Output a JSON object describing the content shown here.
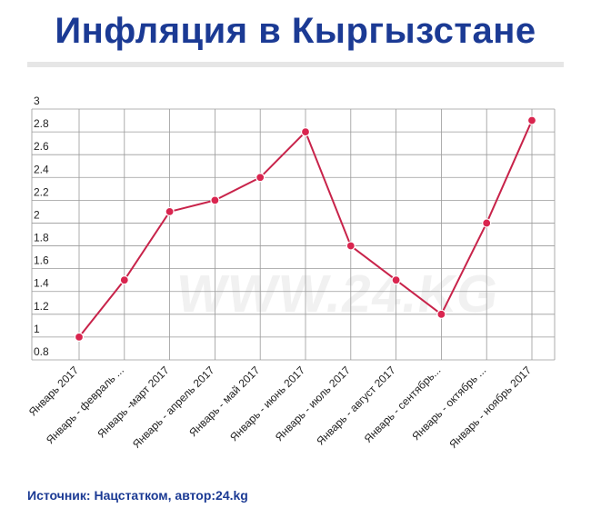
{
  "page": {
    "title": "Инфляция в Кыргызстане",
    "source": "Источник: Нацстатком, автор:24.kg",
    "watermark": "WWW.24.KG"
  },
  "colors": {
    "title": "#1b3a94",
    "line": "#c8234a",
    "marker": "#d9254f",
    "grid": "#9a9a9a"
  },
  "chart_data": {
    "type": "line",
    "title": "Инфляция в Кыргызстане",
    "categories": [
      "Январь 2017",
      "Январь - февраль ...",
      "Январь -март 2017",
      "Январь - апрель 2017",
      "Январь - май 2017",
      "Январь - июнь 2017",
      "Январь - июль 2017",
      "Январь - август 2017",
      "Январь - сентябрь...",
      "Январь - октябрь ...",
      "Январь - ноябрь 2017"
    ],
    "series": [
      {
        "values": [
          1.0,
          1.5,
          2.1,
          2.2,
          2.4,
          2.8,
          1.8,
          1.5,
          1.2,
          2.0,
          2.9
        ]
      }
    ],
    "ylim": [
      0.8,
      3.0
    ],
    "yticks": [
      "0.8",
      "1",
      "1.2",
      "1.4",
      "1.6",
      "1.8",
      "2",
      "2.2",
      "2.4",
      "2.6",
      "2.8",
      "3"
    ],
    "xlabel": "",
    "ylabel": "",
    "grid": true,
    "legend": "none"
  }
}
